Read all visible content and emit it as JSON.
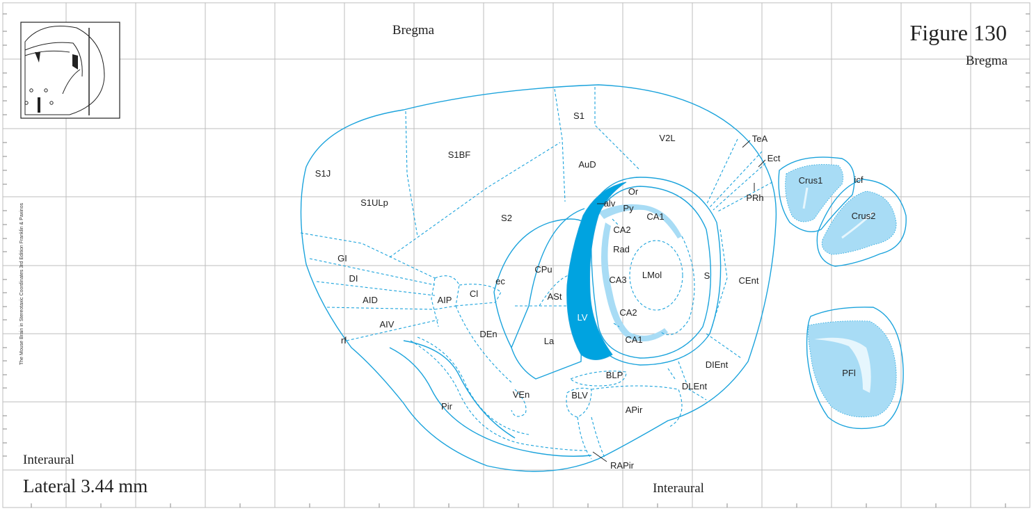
{
  "figure_title": "Figure 130",
  "bregma_top": "Bregma",
  "bregma_right": "Bregma",
  "interaural_left": "Interaural",
  "interaural_bottom": "Interaural",
  "lateral": "Lateral 3.44 mm",
  "side_credit": "The Mouse Brain in Stereotaxic Coordinates 3rd Edition  Franklin & Paxinos",
  "colors": {
    "outline": "#1ba3dc",
    "ventricle": "#00a3e0",
    "light": "#a8dcf5",
    "grid": "#bdbdbd"
  },
  "regions": {
    "S1J": "S1J",
    "S1ULp": "S1ULp",
    "S1BF": "S1BF",
    "S1": "S1",
    "V2L": "V2L",
    "AuD": "AuD",
    "S2": "S2",
    "TeA": "TeA",
    "Ect": "Ect",
    "PRh": "PRh",
    "Or": "Or",
    "alv": "alv",
    "Py": "Py",
    "CA1_top": "CA1",
    "CA2_top": "CA2",
    "Rad": "Rad",
    "LMol": "LMol",
    "CA3": "CA3",
    "CA2_bot": "CA2",
    "CA1_bot": "CA1",
    "S": "S",
    "CEnt": "CEnt",
    "CPu": "CPu",
    "ec": "ec",
    "ASt": "ASt",
    "LV": "LV",
    "GI": "GI",
    "DI": "DI",
    "AID": "AID",
    "AIP": "AIP",
    "Cl": "Cl",
    "AIV": "AIV",
    "rf": "rf",
    "DEn": "DEn",
    "La": "La",
    "BLP": "BLP",
    "BLV": "BLV",
    "VEn": "VEn",
    "Pir": "Pir",
    "APir": "APir",
    "DLEnt": "DLEnt",
    "DIEnt": "DIEnt",
    "RAPir": "RAPir",
    "Crus1": "Crus1",
    "icf": "icf",
    "Crus2": "Crus2",
    "PFl": "PFl"
  }
}
